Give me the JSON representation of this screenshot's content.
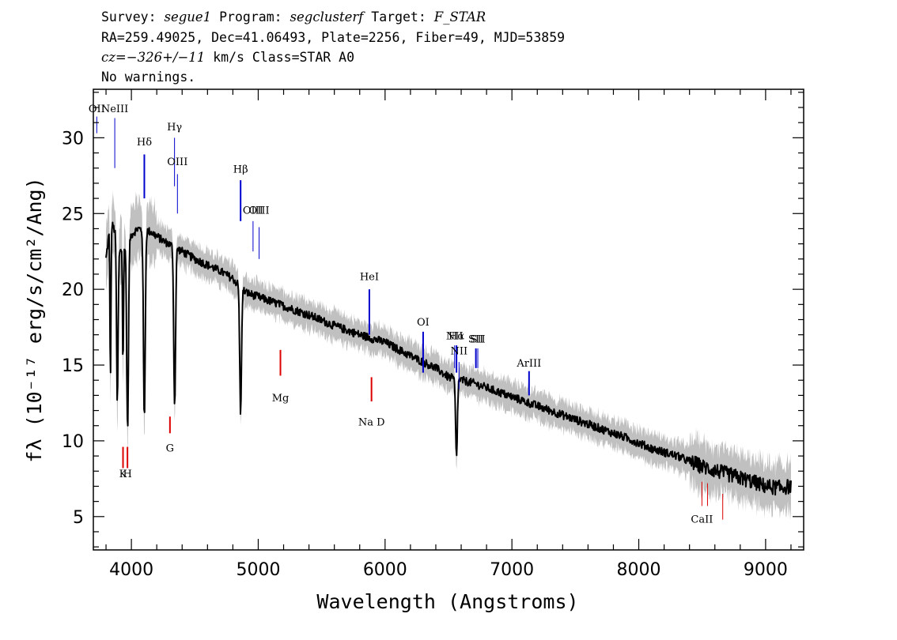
{
  "header": {
    "survey_label": "Survey:",
    "survey": "segue1",
    "program_label": "Program:",
    "program": "segclusterf",
    "target_label": "Target:",
    "target": "F_STAR",
    "line2": "RA=259.49025, Dec=41.06493, Plate=2256, Fiber=49, MJD=53859",
    "line3_cz": "cz=−326+/−11",
    "line3_rest": " km/s Class=STAR A0",
    "line4": "No warnings."
  },
  "chart_data": {
    "type": "line",
    "xlabel": "Wavelength (Angstroms)",
    "ylabel": "fλ (10⁻¹⁷ erg/s/cm²/Ang)",
    "xlim": [
      3700,
      9300
    ],
    "ylim": [
      2.8,
      33.2
    ],
    "x_ticks": [
      4000,
      5000,
      6000,
      7000,
      8000,
      9000
    ],
    "y_ticks": [
      5,
      10,
      15,
      20,
      25,
      30
    ],
    "grid": false,
    "colors": {
      "spectrum": "#000000",
      "error_band": "#c0c0c0",
      "emission": "#0000cc",
      "absorption": "#dd0000"
    },
    "series": [
      {
        "values": [
          [
            3800,
            22.0
          ],
          [
            3835,
            24.5
          ],
          [
            3889,
            23.5
          ],
          [
            3900,
            22.5
          ],
          [
            3950,
            23.0
          ],
          [
            4000,
            23.6
          ],
          [
            4050,
            24.0
          ],
          [
            4150,
            23.8
          ],
          [
            4250,
            23.2
          ],
          [
            4400,
            22.5
          ],
          [
            4500,
            22.0
          ],
          [
            4600,
            21.6
          ],
          [
            4700,
            21.2
          ],
          [
            4800,
            20.7
          ],
          [
            4900,
            19.8
          ],
          [
            5000,
            19.5
          ],
          [
            5200,
            18.9
          ],
          [
            5400,
            18.3
          ],
          [
            5600,
            17.6
          ],
          [
            5800,
            17.0
          ],
          [
            6000,
            16.5
          ],
          [
            6200,
            15.6
          ],
          [
            6400,
            14.8
          ],
          [
            6500,
            14.2
          ],
          [
            6700,
            13.8
          ],
          [
            6900,
            13.2
          ],
          [
            7100,
            12.6
          ],
          [
            7300,
            12.0
          ],
          [
            7500,
            11.4
          ],
          [
            7700,
            10.8
          ],
          [
            7900,
            10.2
          ],
          [
            8100,
            9.5
          ],
          [
            8300,
            9.0
          ],
          [
            8500,
            8.3
          ],
          [
            8700,
            7.8
          ],
          [
            8900,
            7.3
          ],
          [
            9000,
            7.0
          ],
          [
            9100,
            6.9
          ],
          [
            9200,
            7.0
          ]
        ],
        "absorption_dips": [
          {
            "center": 3835,
            "depth": 10.5,
            "width": 4
          },
          {
            "center": 3889,
            "depth": 11.0,
            "width": 6
          },
          {
            "center": 3934,
            "depth": 8.0,
            "width": 4
          },
          {
            "center": 3970,
            "depth": 12.5,
            "width": 7
          },
          {
            "center": 4102,
            "depth": 12.5,
            "width": 7
          },
          {
            "center": 4341,
            "depth": 10.5,
            "width": 7
          },
          {
            "center": 4861,
            "depth": 8.3,
            "width": 7
          },
          {
            "center": 6563,
            "depth": 5.2,
            "width": 7
          }
        ]
      }
    ],
    "line_labels": [
      {
        "label": "OII",
        "x": 3727,
        "y_text": 31.7,
        "line": [
          30.3,
          31.4
        ],
        "color": "#0000cc",
        "width": 1
      },
      {
        "label": "NeIII",
        "x": 3869,
        "y_text": 31.7,
        "line": [
          28.0,
          31.3
        ],
        "color": "#0000cc",
        "width": 1
      },
      {
        "label": "Hδ",
        "x": 4102,
        "y_text": 29.5,
        "line": [
          26.0,
          28.9
        ],
        "color": "#0000cc",
        "width": 2
      },
      {
        "label": "Hγ",
        "x": 4340,
        "y_text": 30.5,
        "line": [
          26.8,
          30.0
        ],
        "color": "#0000cc",
        "width": 1
      },
      {
        "label": "OIII",
        "x": 4363,
        "y_text": 28.2,
        "line": [
          25.0,
          27.6
        ],
        "color": "#0000cc",
        "width": 1
      },
      {
        "label": "Hβ",
        "x": 4861,
        "y_text": 27.7,
        "line": [
          24.5,
          27.2
        ],
        "color": "#0000cc",
        "width": 2
      },
      {
        "label": "OIII",
        "x": 4959,
        "y_text": 25.0,
        "line": [
          22.5,
          24.5
        ],
        "color": "#0000cc",
        "width": 1
      },
      {
        "label": "OIII",
        "x": 5007,
        "y_text": 25.0,
        "line": [
          22.0,
          24.1
        ],
        "color": "#0000cc",
        "width": 1
      },
      {
        "label": "HeI",
        "x": 5876,
        "y_text": 20.6,
        "line": [
          17.0,
          20.0
        ],
        "color": "#0000cc",
        "width": 2
      },
      {
        "label": "OI",
        "x": 6300,
        "y_text": 17.6,
        "line": [
          14.5,
          17.2
        ],
        "color": "#0000cc",
        "width": 2
      },
      {
        "label": "NII",
        "x": 6548,
        "y_text": 16.7,
        "line": [
          14.8,
          16.3
        ],
        "color": "#0000cc",
        "width": 1
      },
      {
        "label": "Hα",
        "x": 6563,
        "y_text": 16.7,
        "line": [
          14.5,
          16.3
        ],
        "color": "#0000cc",
        "width": 2
      },
      {
        "label": "NII",
        "x": 6583,
        "y_text": 15.7,
        "line": [
          13.4,
          15.2
        ],
        "color": "#0000cc",
        "width": 1
      },
      {
        "label": "SII",
        "x": 6716,
        "y_text": 16.5,
        "line": [
          14.8,
          16.1
        ],
        "color": "#0000cc",
        "width": 2
      },
      {
        "label": "SII",
        "x": 6731,
        "y_text": 16.5,
        "line": [
          14.8,
          16.1
        ],
        "color": "#0000cc",
        "width": 1
      },
      {
        "label": "ArIII",
        "x": 7135,
        "y_text": 14.9,
        "line": [
          13.0,
          14.6
        ],
        "color": "#0000cc",
        "width": 2
      },
      {
        "label": "Mg",
        "x": 5175,
        "y_text": 12.6,
        "line": [
          14.3,
          16.0
        ],
        "color": "#dd0000",
        "width": 2
      },
      {
        "label": "Na D",
        "x": 5893,
        "y_text": 11.0,
        "line": [
          12.6,
          14.2
        ],
        "color": "#dd0000",
        "width": 2
      },
      {
        "label": "G",
        "x": 4304,
        "y_text": 9.3,
        "line": [
          10.5,
          11.6
        ],
        "color": "#dd0000",
        "width": 2
      },
      {
        "label": "K",
        "x": 3934,
        "y_text": 7.6,
        "line": [
          8.2,
          9.6
        ],
        "color": "#dd0000",
        "width": 2
      },
      {
        "label": "H",
        "x": 3969,
        "y_text": 7.6,
        "line": [
          8.2,
          9.6
        ],
        "color": "#dd0000",
        "width": 2
      },
      {
        "label": "CaII",
        "x": 8498,
        "y_text": 4.6,
        "line": [
          5.7,
          7.3
        ],
        "color": "#dd0000",
        "width": 1
      },
      {
        "label": "",
        "x": 8542,
        "y_text": 4.6,
        "line": [
          5.7,
          7.2
        ],
        "color": "#dd0000",
        "width": 1
      },
      {
        "label": "",
        "x": 8662,
        "y_text": 4.6,
        "line": [
          4.8,
          6.5
        ],
        "color": "#dd0000",
        "width": 1
      }
    ]
  }
}
